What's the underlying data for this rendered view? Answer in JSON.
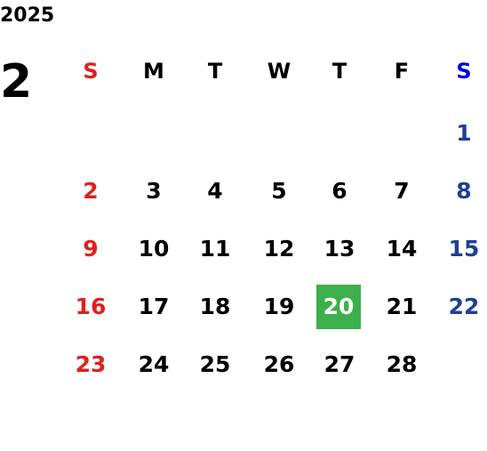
{
  "year": "2025",
  "month": "2",
  "weekdays": [
    "S",
    "M",
    "T",
    "W",
    "T",
    "F",
    "S"
  ],
  "weeks": [
    [
      null,
      null,
      null,
      null,
      null,
      null,
      1
    ],
    [
      2,
      3,
      4,
      5,
      6,
      7,
      8
    ],
    [
      9,
      10,
      11,
      12,
      13,
      14,
      15
    ],
    [
      16,
      17,
      18,
      19,
      20,
      21,
      22
    ],
    [
      23,
      24,
      25,
      26,
      27,
      28,
      null
    ]
  ],
  "highlighted_day": 20
}
